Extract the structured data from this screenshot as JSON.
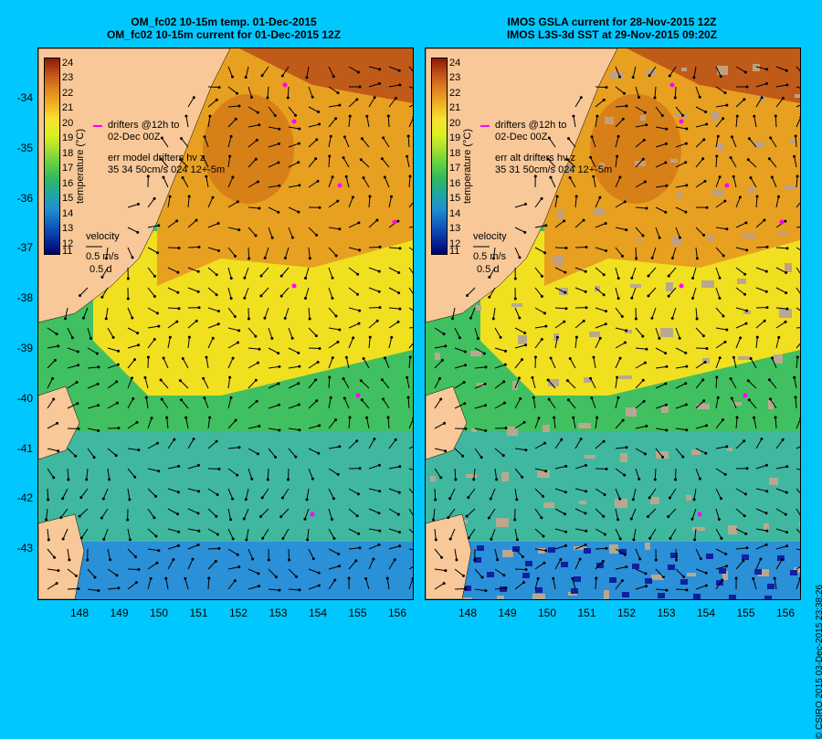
{
  "left": {
    "title_line1": "OM_fc02 10-15m temp. 01-Dec-2015",
    "title_line2": "OM_fc02 10-15m current for 01-Dec-2015 12Z",
    "drifters_label": "drifters @12h to\n02-Dec 00Z",
    "err_label": "err model drifters hv z\n35 34 50cm/s 024 12+-5m",
    "velocity_label": "velocity",
    "velocity_scale": "0.5 m/s",
    "velocity_time": "0.5 d"
  },
  "right": {
    "title_line1": "IMOS GSLA current for 28-Nov-2015 12Z",
    "title_line2": "IMOS L3S-3d SST at 29-Nov-2015 09:20Z",
    "drifters_label": "drifters @12h to\n02-Dec 00Z",
    "err_label": "err alt drifters hv z\n35 31 50cm/s 024 12+-5m",
    "velocity_label": "velocity",
    "velocity_scale": "0.5 m/s",
    "velocity_time": "0.5 d"
  },
  "colorbar": {
    "title": "temperature (°C)",
    "ticks": [
      "24",
      "23",
      "22",
      "21",
      "20",
      "19",
      "18",
      "17",
      "16",
      "15",
      "14",
      "13",
      "12",
      "11"
    ],
    "colors": [
      "#8b1a00",
      "#c0501a",
      "#e08020",
      "#f0b020",
      "#f8e030",
      "#e0f020",
      "#a8e030",
      "#60d040",
      "#30b860",
      "#20a8a0",
      "#2090d0",
      "#1060c0",
      "#0830a0",
      "#000070"
    ]
  },
  "y_ticks": [
    "-34",
    "-35",
    "-36",
    "-37",
    "-38",
    "-39",
    "-40",
    "-41",
    "-42",
    "-43"
  ],
  "x_ticks": [
    "148",
    "149",
    "150",
    "151",
    "152",
    "153",
    "154",
    "155",
    "156"
  ],
  "copyright": "© CSIRO 2015   03-Dec-2015 23:38:26"
}
